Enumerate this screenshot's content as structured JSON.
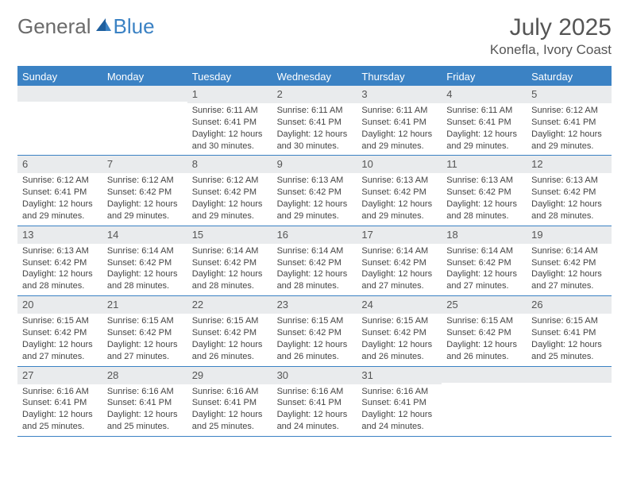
{
  "logo": {
    "text1": "General",
    "text2": "Blue"
  },
  "title": "July 2025",
  "location": "Konefla, Ivory Coast",
  "colors": {
    "accent": "#3b82c4",
    "header_bg": "#e9ebed",
    "text": "#444444",
    "title_text": "#555555"
  },
  "weekdays": [
    "Sunday",
    "Monday",
    "Tuesday",
    "Wednesday",
    "Thursday",
    "Friday",
    "Saturday"
  ],
  "weeks": [
    [
      null,
      null,
      {
        "n": "1",
        "sr": "6:11 AM",
        "ss": "6:41 PM",
        "dl": "12 hours and 30 minutes."
      },
      {
        "n": "2",
        "sr": "6:11 AM",
        "ss": "6:41 PM",
        "dl": "12 hours and 30 minutes."
      },
      {
        "n": "3",
        "sr": "6:11 AM",
        "ss": "6:41 PM",
        "dl": "12 hours and 29 minutes."
      },
      {
        "n": "4",
        "sr": "6:11 AM",
        "ss": "6:41 PM",
        "dl": "12 hours and 29 minutes."
      },
      {
        "n": "5",
        "sr": "6:12 AM",
        "ss": "6:41 PM",
        "dl": "12 hours and 29 minutes."
      }
    ],
    [
      {
        "n": "6",
        "sr": "6:12 AM",
        "ss": "6:41 PM",
        "dl": "12 hours and 29 minutes."
      },
      {
        "n": "7",
        "sr": "6:12 AM",
        "ss": "6:42 PM",
        "dl": "12 hours and 29 minutes."
      },
      {
        "n": "8",
        "sr": "6:12 AM",
        "ss": "6:42 PM",
        "dl": "12 hours and 29 minutes."
      },
      {
        "n": "9",
        "sr": "6:13 AM",
        "ss": "6:42 PM",
        "dl": "12 hours and 29 minutes."
      },
      {
        "n": "10",
        "sr": "6:13 AM",
        "ss": "6:42 PM",
        "dl": "12 hours and 29 minutes."
      },
      {
        "n": "11",
        "sr": "6:13 AM",
        "ss": "6:42 PM",
        "dl": "12 hours and 28 minutes."
      },
      {
        "n": "12",
        "sr": "6:13 AM",
        "ss": "6:42 PM",
        "dl": "12 hours and 28 minutes."
      }
    ],
    [
      {
        "n": "13",
        "sr": "6:13 AM",
        "ss": "6:42 PM",
        "dl": "12 hours and 28 minutes."
      },
      {
        "n": "14",
        "sr": "6:14 AM",
        "ss": "6:42 PM",
        "dl": "12 hours and 28 minutes."
      },
      {
        "n": "15",
        "sr": "6:14 AM",
        "ss": "6:42 PM",
        "dl": "12 hours and 28 minutes."
      },
      {
        "n": "16",
        "sr": "6:14 AM",
        "ss": "6:42 PM",
        "dl": "12 hours and 28 minutes."
      },
      {
        "n": "17",
        "sr": "6:14 AM",
        "ss": "6:42 PM",
        "dl": "12 hours and 27 minutes."
      },
      {
        "n": "18",
        "sr": "6:14 AM",
        "ss": "6:42 PM",
        "dl": "12 hours and 27 minutes."
      },
      {
        "n": "19",
        "sr": "6:14 AM",
        "ss": "6:42 PM",
        "dl": "12 hours and 27 minutes."
      }
    ],
    [
      {
        "n": "20",
        "sr": "6:15 AM",
        "ss": "6:42 PM",
        "dl": "12 hours and 27 minutes."
      },
      {
        "n": "21",
        "sr": "6:15 AM",
        "ss": "6:42 PM",
        "dl": "12 hours and 27 minutes."
      },
      {
        "n": "22",
        "sr": "6:15 AM",
        "ss": "6:42 PM",
        "dl": "12 hours and 26 minutes."
      },
      {
        "n": "23",
        "sr": "6:15 AM",
        "ss": "6:42 PM",
        "dl": "12 hours and 26 minutes."
      },
      {
        "n": "24",
        "sr": "6:15 AM",
        "ss": "6:42 PM",
        "dl": "12 hours and 26 minutes."
      },
      {
        "n": "25",
        "sr": "6:15 AM",
        "ss": "6:42 PM",
        "dl": "12 hours and 26 minutes."
      },
      {
        "n": "26",
        "sr": "6:15 AM",
        "ss": "6:41 PM",
        "dl": "12 hours and 25 minutes."
      }
    ],
    [
      {
        "n": "27",
        "sr": "6:16 AM",
        "ss": "6:41 PM",
        "dl": "12 hours and 25 minutes."
      },
      {
        "n": "28",
        "sr": "6:16 AM",
        "ss": "6:41 PM",
        "dl": "12 hours and 25 minutes."
      },
      {
        "n": "29",
        "sr": "6:16 AM",
        "ss": "6:41 PM",
        "dl": "12 hours and 25 minutes."
      },
      {
        "n": "30",
        "sr": "6:16 AM",
        "ss": "6:41 PM",
        "dl": "12 hours and 24 minutes."
      },
      {
        "n": "31",
        "sr": "6:16 AM",
        "ss": "6:41 PM",
        "dl": "12 hours and 24 minutes."
      },
      null,
      null
    ]
  ],
  "labels": {
    "sunrise": "Sunrise:",
    "sunset": "Sunset:",
    "daylight": "Daylight:"
  }
}
